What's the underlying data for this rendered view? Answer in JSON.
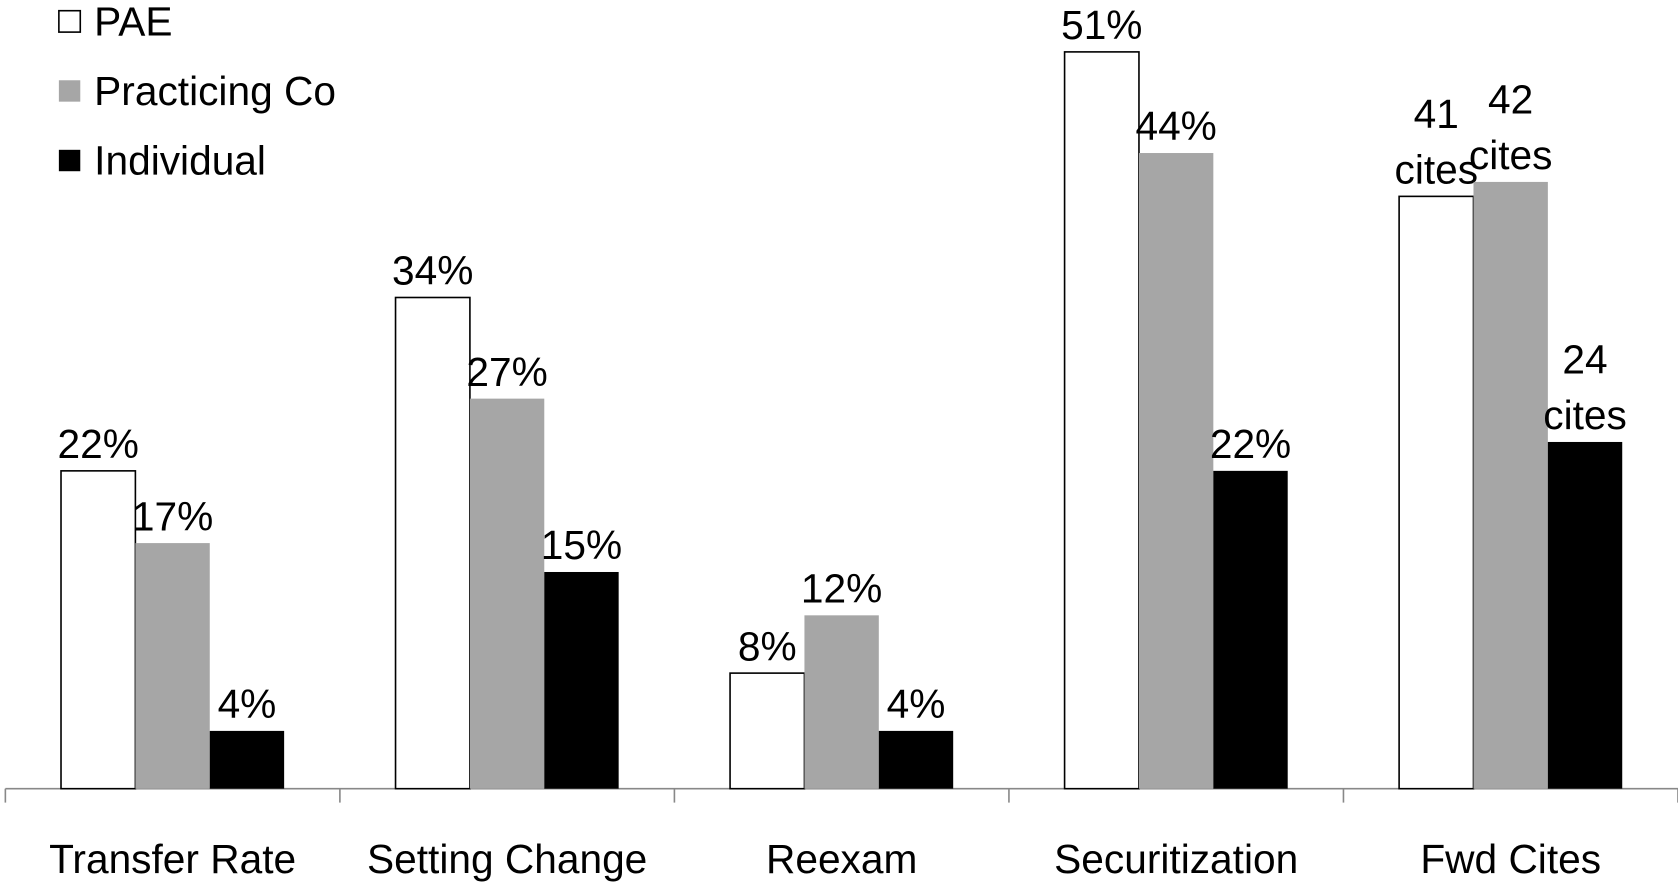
{
  "chart_data": {
    "type": "bar",
    "categories": [
      "Transfer Rate",
      "Setting Change",
      "Reexam",
      "Securitization",
      "Fwd Cites"
    ],
    "ylim": [
      0,
      54
    ],
    "series": [
      {
        "name": "PAE",
        "color": "#ffffff",
        "values": [
          22,
          34,
          8,
          51,
          41
        ],
        "value_labels": [
          "22%",
          "34%",
          "8%",
          "51%",
          "41 cites"
        ]
      },
      {
        "name": "Practicing Co",
        "color": "#a6a6a6",
        "values": [
          17,
          27,
          12,
          44,
          42
        ],
        "value_labels": [
          "17%",
          "27%",
          "12%",
          "44%",
          "42 cites"
        ]
      },
      {
        "name": "Individual",
        "color": "#000000",
        "values": [
          4,
          15,
          4,
          22,
          24
        ],
        "value_labels": [
          "4%",
          "15%",
          "4%",
          "22%",
          "24 cites"
        ]
      }
    ]
  }
}
